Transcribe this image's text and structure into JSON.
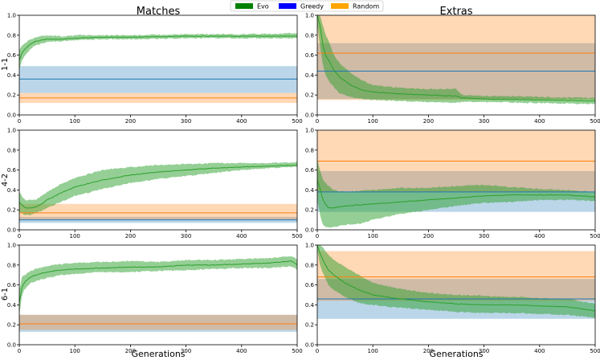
{
  "legend": {
    "entries": [
      {
        "label": "Evo",
        "color": "#008000"
      },
      {
        "label": "Greedy",
        "color": "#0000ff"
      },
      {
        "label": "Random",
        "color": "#ffa500"
      }
    ]
  },
  "columns": [
    "Matches",
    "Extras"
  ],
  "rows": [
    "1-1",
    "4-2",
    "6-1"
  ],
  "xlabel": "Generations",
  "x_ticks": [
    "0",
    "100",
    "200",
    "300",
    "400",
    "500"
  ],
  "y_ticks": [
    "0.0",
    "0.2",
    "0.4",
    "0.6",
    "0.8",
    "1.0"
  ],
  "colors": {
    "evo_line": "#2ca02c",
    "evo_band": "#2ca02c",
    "greedy_line": "#1f77b4",
    "greedy_band": "#1f77b4",
    "random_line": "#ff7f0e",
    "random_band": "#ff7f0e"
  },
  "chart_data": [
    {
      "type": "line",
      "row": "1-1",
      "col": "Matches",
      "xlim": [
        0,
        500
      ],
      "ylim": [
        0,
        1
      ],
      "evo": {
        "x": [
          0,
          5,
          10,
          20,
          30,
          50,
          75,
          100,
          150,
          200,
          300,
          400,
          500
        ],
        "mean": [
          0.55,
          0.62,
          0.66,
          0.71,
          0.74,
          0.76,
          0.76,
          0.77,
          0.78,
          0.78,
          0.79,
          0.79,
          0.79
        ],
        "lower": [
          0.45,
          0.55,
          0.6,
          0.66,
          0.7,
          0.73,
          0.74,
          0.75,
          0.76,
          0.76,
          0.77,
          0.77,
          0.77
        ],
        "upper": [
          0.65,
          0.7,
          0.72,
          0.76,
          0.78,
          0.8,
          0.79,
          0.8,
          0.8,
          0.8,
          0.81,
          0.81,
          0.82
        ]
      },
      "greedy": {
        "mean": 0.36,
        "lower": 0.22,
        "upper": 0.49
      },
      "random": {
        "mean": 0.17,
        "lower": 0.12,
        "upper": 0.22
      }
    },
    {
      "type": "line",
      "row": "1-1",
      "col": "Extras",
      "xlim": [
        0,
        500
      ],
      "ylim": [
        0,
        1
      ],
      "evo": {
        "x": [
          0,
          5,
          10,
          15,
          20,
          30,
          40,
          60,
          80,
          100,
          150,
          200,
          250,
          260,
          300,
          400,
          500
        ],
        "mean": [
          1.0,
          0.9,
          0.7,
          0.6,
          0.55,
          0.45,
          0.38,
          0.3,
          0.25,
          0.23,
          0.21,
          0.2,
          0.19,
          0.17,
          0.16,
          0.15,
          0.14
        ],
        "lower": [
          0.9,
          0.7,
          0.5,
          0.4,
          0.35,
          0.28,
          0.22,
          0.18,
          0.16,
          0.15,
          0.14,
          0.13,
          0.12,
          0.13,
          0.13,
          0.12,
          0.11
        ],
        "upper": [
          1.0,
          1.0,
          0.9,
          0.8,
          0.75,
          0.6,
          0.52,
          0.42,
          0.35,
          0.3,
          0.27,
          0.26,
          0.26,
          0.2,
          0.19,
          0.18,
          0.17
        ]
      },
      "greedy": {
        "mean": 0.44,
        "lower": 0.16,
        "upper": 0.72
      },
      "random": {
        "mean": 0.62,
        "lower": 0.15,
        "upper": 1.0
      }
    },
    {
      "type": "line",
      "row": "4-2",
      "col": "Matches",
      "xlim": [
        0,
        500
      ],
      "ylim": [
        0,
        1
      ],
      "evo": {
        "x": [
          0,
          10,
          20,
          30,
          40,
          50,
          75,
          100,
          150,
          200,
          250,
          300,
          350,
          400,
          450,
          500
        ],
        "mean": [
          0.28,
          0.22,
          0.22,
          0.23,
          0.26,
          0.3,
          0.37,
          0.43,
          0.5,
          0.55,
          0.58,
          0.6,
          0.62,
          0.63,
          0.64,
          0.65
        ],
        "lower": [
          0.18,
          0.15,
          0.15,
          0.17,
          0.19,
          0.22,
          0.28,
          0.34,
          0.41,
          0.47,
          0.51,
          0.54,
          0.57,
          0.6,
          0.62,
          0.63
        ],
        "upper": [
          0.38,
          0.3,
          0.3,
          0.3,
          0.34,
          0.38,
          0.46,
          0.52,
          0.6,
          0.63,
          0.65,
          0.66,
          0.67,
          0.67,
          0.67,
          0.68
        ]
      },
      "greedy": {
        "mean": 0.1,
        "lower": 0.07,
        "upper": 0.13
      },
      "random": {
        "mean": 0.17,
        "lower": 0.1,
        "upper": 0.26
      }
    },
    {
      "type": "line",
      "row": "4-2",
      "col": "Extras",
      "xlim": [
        0,
        500
      ],
      "ylim": [
        0,
        1
      ],
      "evo": {
        "x": [
          0,
          5,
          10,
          20,
          30,
          50,
          75,
          100,
          150,
          200,
          250,
          300,
          350,
          400,
          450,
          500
        ],
        "mean": [
          0.5,
          0.42,
          0.3,
          0.22,
          0.22,
          0.24,
          0.25,
          0.26,
          0.28,
          0.3,
          0.32,
          0.34,
          0.35,
          0.35,
          0.35,
          0.33
        ],
        "lower": [
          0.3,
          0.15,
          0.05,
          0.02,
          0.03,
          0.05,
          0.06,
          0.1,
          0.16,
          0.2,
          0.24,
          0.27,
          0.28,
          0.3,
          0.3,
          0.29
        ],
        "upper": [
          0.7,
          0.6,
          0.5,
          0.44,
          0.4,
          0.38,
          0.39,
          0.4,
          0.42,
          0.42,
          0.44,
          0.45,
          0.43,
          0.41,
          0.4,
          0.38
        ]
      },
      "greedy": {
        "mean": 0.38,
        "lower": 0.18,
        "upper": 0.59
      },
      "random": {
        "mean": 0.69,
        "lower": 0.38,
        "upper": 1.0
      }
    },
    {
      "type": "line",
      "row": "6-1",
      "col": "Matches",
      "xlim": [
        0,
        500
      ],
      "ylim": [
        0,
        1
      ],
      "evo": {
        "x": [
          0,
          5,
          10,
          20,
          30,
          50,
          75,
          100,
          150,
          200,
          250,
          300,
          350,
          400,
          450,
          490,
          500
        ],
        "mean": [
          0.42,
          0.58,
          0.63,
          0.68,
          0.7,
          0.73,
          0.75,
          0.76,
          0.77,
          0.78,
          0.78,
          0.8,
          0.8,
          0.81,
          0.82,
          0.84,
          0.8
        ],
        "lower": [
          0.3,
          0.5,
          0.56,
          0.62,
          0.64,
          0.67,
          0.7,
          0.71,
          0.73,
          0.73,
          0.74,
          0.75,
          0.76,
          0.77,
          0.77,
          0.79,
          0.75
        ],
        "upper": [
          0.55,
          0.68,
          0.7,
          0.74,
          0.76,
          0.79,
          0.81,
          0.82,
          0.83,
          0.84,
          0.83,
          0.85,
          0.85,
          0.86,
          0.87,
          0.89,
          0.86
        ]
      },
      "greedy": {
        "mean": 0.21,
        "lower": 0.13,
        "upper": 0.3
      },
      "random": {
        "mean": 0.21,
        "lower": 0.15,
        "upper": 0.3
      }
    },
    {
      "type": "line",
      "row": "6-1",
      "col": "Extras",
      "xlim": [
        0,
        500
      ],
      "ylim": [
        0,
        1
      ],
      "evo": {
        "x": [
          0,
          5,
          10,
          20,
          30,
          50,
          75,
          100,
          150,
          200,
          250,
          300,
          350,
          400,
          450,
          500
        ],
        "mean": [
          1.0,
          0.92,
          0.85,
          0.75,
          0.7,
          0.62,
          0.55,
          0.5,
          0.46,
          0.43,
          0.41,
          0.4,
          0.4,
          0.39,
          0.38,
          0.34
        ],
        "lower": [
          0.95,
          0.8,
          0.72,
          0.6,
          0.55,
          0.48,
          0.42,
          0.4,
          0.37,
          0.35,
          0.33,
          0.32,
          0.32,
          0.31,
          0.3,
          0.27
        ],
        "upper": [
          1.0,
          1.0,
          0.98,
          0.9,
          0.85,
          0.78,
          0.7,
          0.62,
          0.56,
          0.52,
          0.5,
          0.49,
          0.48,
          0.47,
          0.46,
          0.41
        ]
      },
      "greedy": {
        "mean": 0.46,
        "lower": 0.26,
        "upper": 0.66
      },
      "random": {
        "mean": 0.68,
        "lower": 0.44,
        "upper": 0.94
      }
    }
  ]
}
